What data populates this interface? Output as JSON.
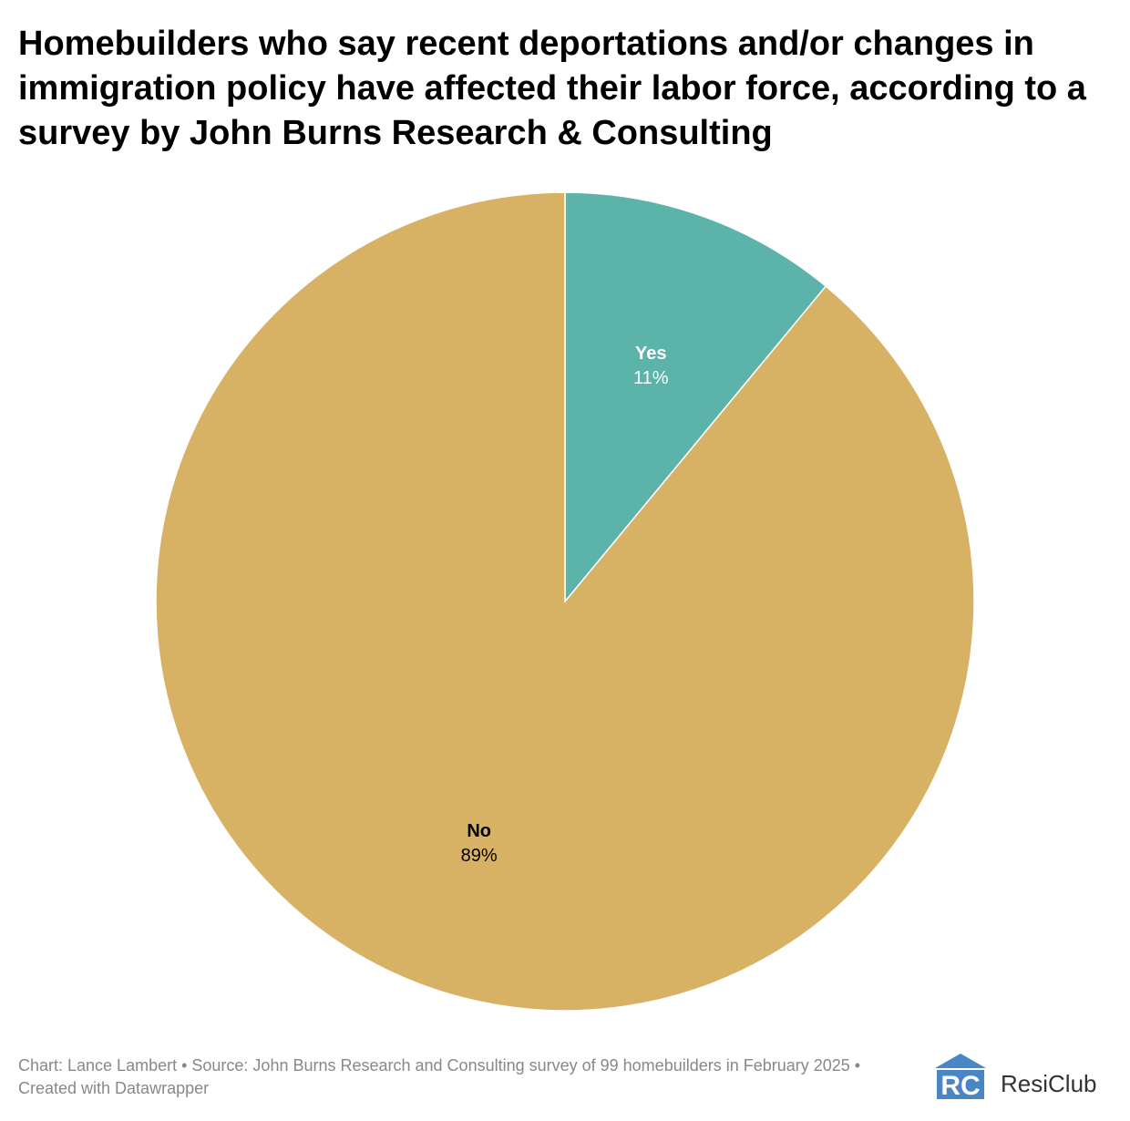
{
  "chart_data": {
    "type": "pie",
    "title": "Homebuilders who say recent deportations and/or changes in immigration policy have affected their labor force, according to a survey by John Burns Research & Consulting",
    "slices": [
      {
        "label": "Yes",
        "value": 11,
        "value_label": "11%",
        "color": "#5bb3aa",
        "label_color": "#ffffff"
      },
      {
        "label": "No",
        "value": 89,
        "value_label": "89%",
        "color": "#d7b265",
        "label_color": "#000000"
      }
    ],
    "start_angle": "12 o'clock, clockwise",
    "legend": "none"
  },
  "footer": {
    "note": "Chart: Lance Lambert • Source: John Burns Research and Consulting survey of 99 homebuilders in February 2025 • Created with Datawrapper"
  },
  "logo": {
    "mark": "RC",
    "wordmark": "ResiClub",
    "color": "#4a86c5"
  }
}
